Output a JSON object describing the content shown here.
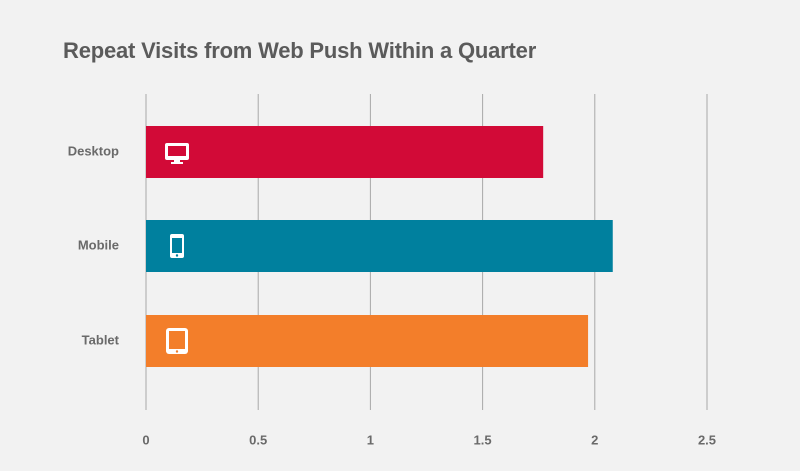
{
  "chart_data": {
    "type": "bar",
    "orientation": "horizontal",
    "title": "Repeat Visits from Web Push Within a Quarter",
    "xlabel": "",
    "ylabel": "",
    "categories": [
      "Desktop",
      "Mobile",
      "Tablet"
    ],
    "values": [
      1.77,
      2.08,
      1.97
    ],
    "bar_colors": [
      "#d20a37",
      "#00809e",
      "#f37e2a"
    ],
    "bar_icons": [
      "desktop-monitor-icon",
      "mobile-phone-icon",
      "tablet-icon"
    ],
    "xlim": [
      0,
      2.5
    ],
    "x_ticks": [
      "0",
      "0.5",
      "1",
      "1.5",
      "2",
      "2.5"
    ],
    "grid": "vertical",
    "legend": "none"
  }
}
